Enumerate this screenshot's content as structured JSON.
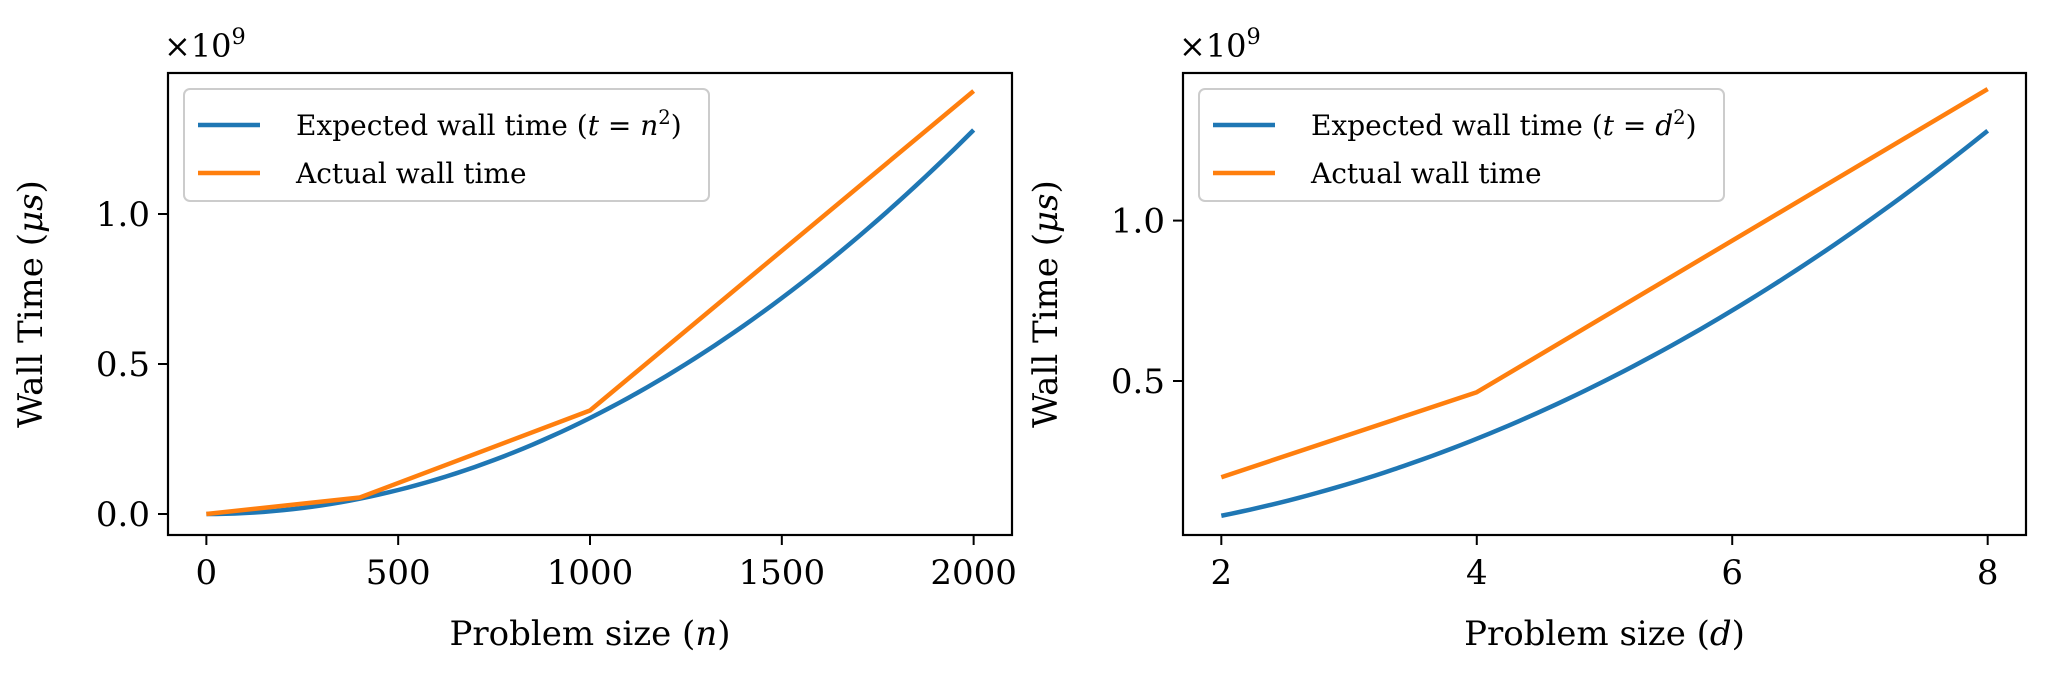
{
  "chart_data": [
    {
      "type": "line",
      "xlabel": "Problem size (n)",
      "xlabel_parts": [
        "Problem size (",
        "n",
        ")"
      ],
      "ylabel": "Wall Time (μs)",
      "ylabel_parts": [
        "Wall Time (",
        "μs",
        ")"
      ],
      "y_multiplier": "×10^9",
      "y_multiplier_parts": [
        "×10",
        "9"
      ],
      "y_unit_scale": 1000000000,
      "xlim": [
        -100,
        2100
      ],
      "ylim": [
        -0.07,
        1.47
      ],
      "xticks": [
        0,
        500,
        1000,
        1500,
        2000
      ],
      "xtick_labels": [
        "0",
        "500",
        "1000",
        "1500",
        "2000"
      ],
      "yticks": [
        0.0,
        0.5,
        1.0
      ],
      "ytick_labels": [
        "0.0",
        "0.5",
        "1.0"
      ],
      "legend_position": "upper-left",
      "grid": false,
      "series": [
        {
          "name": "Expected wall time (t = n²)",
          "name_parts": [
            "Expected wall time (",
            "t",
            " = ",
            "n",
            "2",
            ")"
          ],
          "color": "#1f77b4",
          "function": "quadratic",
          "x": [
            0,
            2000
          ],
          "coefficient": 3.2e-07
        },
        {
          "name": "Actual wall time",
          "color": "#ff7f0e",
          "x": [
            0,
            400,
            1000,
            2000
          ],
          "y": [
            0.0,
            0.055,
            0.345,
            1.41
          ]
        }
      ]
    },
    {
      "type": "line",
      "xlabel": "Problem size (d)",
      "xlabel_parts": [
        "Problem size (",
        "d",
        ")"
      ],
      "ylabel": "Wall Time (μs)",
      "ylabel_parts": [
        "Wall Time (",
        "μs",
        ")"
      ],
      "y_multiplier": "×10^9",
      "y_multiplier_parts": [
        "×10",
        "9"
      ],
      "y_unit_scale": 1000000000,
      "xlim": [
        1.7,
        8.3
      ],
      "ylim": [
        0.02,
        1.46
      ],
      "xticks": [
        2,
        4,
        6,
        8
      ],
      "xtick_labels": [
        "2",
        "4",
        "6",
        "8"
      ],
      "yticks": [
        0.5,
        1.0
      ],
      "ytick_labels": [
        "0.5",
        "1.0"
      ],
      "legend_position": "upper-left",
      "grid": false,
      "series": [
        {
          "name": "Expected wall time (t = d²)",
          "name_parts": [
            "Expected wall time (",
            "t",
            " = ",
            "d",
            "2",
            ")"
          ],
          "color": "#1f77b4",
          "function": "quadratic",
          "x": [
            2,
            8
          ],
          "coefficient": 0.02
        },
        {
          "name": "Actual wall time",
          "color": "#ff7f0e",
          "x": [
            2,
            4,
            8
          ],
          "y": [
            0.2,
            0.465,
            1.41
          ]
        }
      ]
    }
  ]
}
